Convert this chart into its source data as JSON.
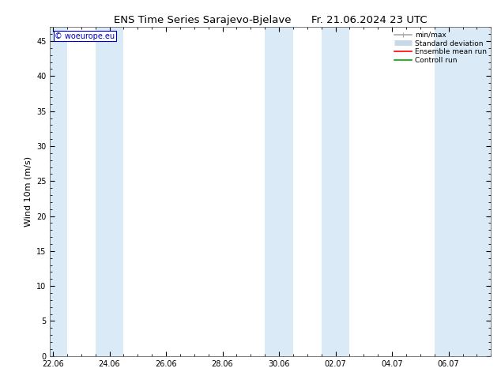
{
  "title_left": "ENS Time Series Sarajevo-Bjelave",
  "title_right": "Fr. 21.06.2024 23 UTC",
  "ylabel": "Wind 10m (m/s)",
  "ylim": [
    0,
    47
  ],
  "yticks": [
    0,
    5,
    10,
    15,
    20,
    25,
    30,
    35,
    40,
    45
  ],
  "xtick_labels": [
    "22.06",
    "24.06",
    "26.06",
    "28.06",
    "30.06",
    "02.07",
    "04.07",
    "06.07"
  ],
  "xtick_positions": [
    0,
    2,
    4,
    6,
    8,
    10,
    12,
    14
  ],
  "xlim": [
    -0.1,
    15.5
  ],
  "watermark": "© woeurope.eu",
  "bg_color": "#ffffff",
  "plot_bg_color": "#ffffff",
  "shade_color": "#daeaf7",
  "shade_bands": [
    [
      -0.1,
      0.5
    ],
    [
      1.5,
      2.5
    ],
    [
      7.5,
      8.5
    ],
    [
      9.5,
      10.5
    ],
    [
      13.5,
      15.5
    ]
  ],
  "legend_entries": [
    {
      "label": "min/max",
      "color": "#aaaaaa",
      "lw": 1.2
    },
    {
      "label": "Standard deviation",
      "color": "#c8d8e8",
      "lw": 5
    },
    {
      "label": "Ensemble mean run",
      "color": "#ff0000",
      "lw": 1.2
    },
    {
      "label": "Controll run",
      "color": "#00aa00",
      "lw": 1.2
    }
  ],
  "title_fontsize": 9.5,
  "axis_fontsize": 8,
  "tick_fontsize": 7,
  "watermark_color": "#0000cc",
  "watermark_fontsize": 7,
  "legend_fontsize": 6.5
}
